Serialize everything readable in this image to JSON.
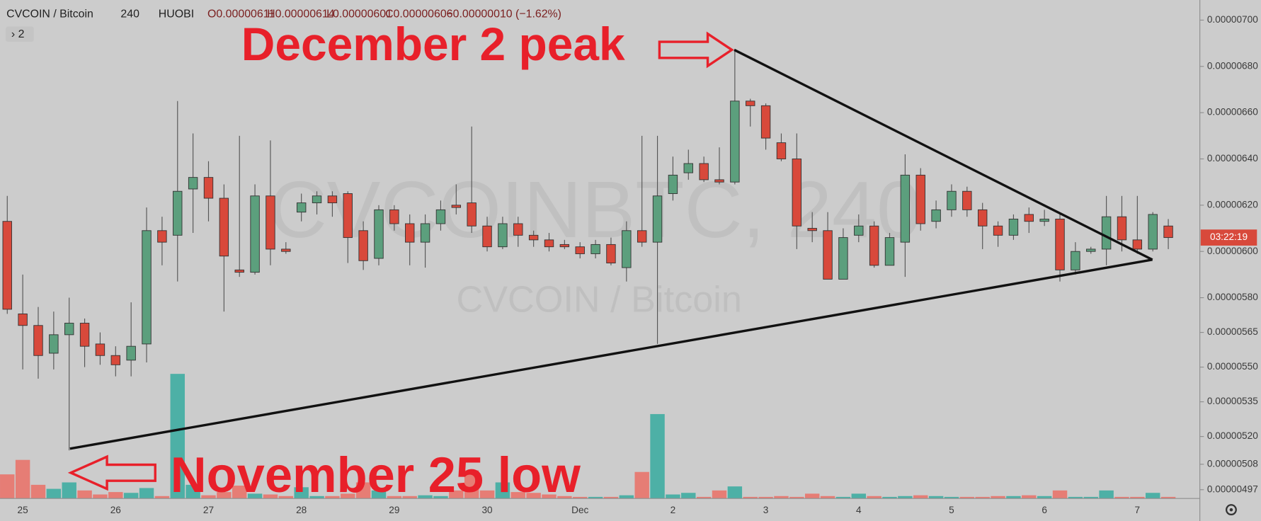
{
  "header": {
    "symbol": "CVCOIN / Bitcoin",
    "interval": "240",
    "exchange": "HUOBI",
    "open": "O0.00000611",
    "high": "H0.00000614",
    "low": "L0.00000601",
    "close": "C0.00000606",
    "change": "−0.00000010 (−1.62%)",
    "indicators": "› 2"
  },
  "watermark": {
    "ticker": "CVCOINBTC, 240",
    "name": "CVCOIN / Bitcoin"
  },
  "chart_data": {
    "type": "candlestick",
    "annotations": [
      "December 2 peak",
      "November 25 low"
    ],
    "countdown": "03:22:19",
    "up_color": "#5c9f7d",
    "down_color": "#d8493b",
    "volume_up_color": "#4db0a6",
    "volume_down_color": "#e67d75",
    "categories": [
      null,
      "25",
      null,
      null,
      null,
      null,
      null,
      "26",
      null,
      null,
      null,
      null,
      null,
      "27",
      null,
      null,
      null,
      null,
      null,
      "28",
      null,
      null,
      null,
      null,
      null,
      "29",
      null,
      null,
      null,
      null,
      null,
      "30",
      null,
      null,
      null,
      null,
      null,
      "Dec",
      null,
      null,
      null,
      null,
      null,
      "2",
      null,
      null,
      null,
      null,
      null,
      "3",
      null,
      null,
      null,
      null,
      null,
      "4",
      null,
      null,
      null,
      null,
      null,
      "5",
      null,
      null,
      null,
      null,
      null,
      "6",
      null,
      null,
      null,
      null,
      null,
      "7",
      null,
      null
    ],
    "open": [
      6.13e-06,
      5.73e-06,
      5.68e-06,
      5.56e-06,
      5.64e-06,
      5.69e-06,
      5.6e-06,
      5.55e-06,
      5.53e-06,
      5.6e-06,
      6.09e-06,
      6.07e-06,
      6.27e-06,
      6.32e-06,
      6.23e-06,
      5.92e-06,
      5.91e-06,
      6.24e-06,
      6.01e-06,
      6.17e-06,
      6.21e-06,
      6.24e-06,
      6.25e-06,
      6.09e-06,
      5.97e-06,
      6.18e-06,
      6.12e-06,
      6.04e-06,
      6.12e-06,
      6.2e-06,
      6.21e-06,
      6.11e-06,
      6.02e-06,
      6.12e-06,
      6.07e-06,
      6.05e-06,
      6.03e-06,
      6.02e-06,
      5.99e-06,
      6.03e-06,
      5.93e-06,
      6.09e-06,
      6.04e-06,
      6.25e-06,
      6.34e-06,
      6.38e-06,
      6.31e-06,
      6.3e-06,
      6.65e-06,
      6.63e-06,
      6.47e-06,
      6.4e-06,
      6.1e-06,
      6.09e-06,
      5.88e-06,
      6.07e-06,
      6.11e-06,
      5.94e-06,
      6.04e-06,
      6.33e-06,
      6.13e-06,
      6.18e-06,
      6.26e-06,
      6.18e-06,
      6.11e-06,
      6.07e-06,
      6.16e-06,
      6.13e-06,
      6.14e-06,
      5.92e-06,
      6e-06,
      6.01e-06,
      6.15e-06,
      6.05e-06,
      6.01e-06,
      6.11e-06
    ],
    "high": [
      6.24e-06,
      5.9e-06,
      5.76e-06,
      5.74e-06,
      5.8e-06,
      5.71e-06,
      5.65e-06,
      5.59e-06,
      5.78e-06,
      6.19e-06,
      6.15e-06,
      6.65e-06,
      6.51e-06,
      6.39e-06,
      6.29e-06,
      6.5e-06,
      6.29e-06,
      6.48e-06,
      6.04e-06,
      6.25e-06,
      6.26e-06,
      6.26e-06,
      6.26e-06,
      6.13e-06,
      6.2e-06,
      6.2e-06,
      6.16e-06,
      6.16e-06,
      6.22e-06,
      6.29e-06,
      6.54e-06,
      6.15e-06,
      6.15e-06,
      6.15e-06,
      6.09e-06,
      6.08e-06,
      6.05e-06,
      6.04e-06,
      6.05e-06,
      6.06e-06,
      6.13e-06,
      6.5e-06,
      6.5e-06,
      6.41e-06,
      6.44e-06,
      6.41e-06,
      6.45e-06,
      6.87e-06,
      6.66e-06,
      6.64e-06,
      6.51e-06,
      6.51e-06,
      6.17e-06,
      6.17e-06,
      6.1e-06,
      6.16e-06,
      6.13e-06,
      6.08e-06,
      6.42e-06,
      6.36e-06,
      6.22e-06,
      6.29e-06,
      6.28e-06,
      6.21e-06,
      6.13e-06,
      6.16e-06,
      6.19e-06,
      6.18e-06,
      6.16e-06,
      6.04e-06,
      6.02e-06,
      6.24e-06,
      6.24e-06,
      6.24e-06,
      6.17e-06,
      6.14e-06
    ],
    "low": [
      5.73e-06,
      5.49e-06,
      5.45e-06,
      5.49e-06,
      5.14e-06,
      5.5e-06,
      5.51e-06,
      5.46e-06,
      5.46e-06,
      5.52e-06,
      5.94e-06,
      5.87e-06,
      6.08e-06,
      6.13e-06,
      5.74e-06,
      5.89e-06,
      5.9e-06,
      5.94e-06,
      5.99e-06,
      6.13e-06,
      6.16e-06,
      6.15e-06,
      5.95e-06,
      5.92e-06,
      5.94e-06,
      6.09e-06,
      5.94e-06,
      5.93e-06,
      6.09e-06,
      6.16e-06,
      6.08e-06,
      6e-06,
      6.01e-06,
      6.02e-06,
      6.02e-06,
      6e-06,
      6.01e-06,
      5.97e-06,
      5.97e-06,
      5.94e-06,
      5.87e-06,
      6.02e-06,
      5.6e-06,
      6.22e-06,
      6.31e-06,
      6.3e-06,
      6.29e-06,
      6.29e-06,
      6.54e-06,
      6.44e-06,
      6.39e-06,
      6.01e-06,
      6.04e-06,
      5.88e-06,
      5.88e-06,
      6.04e-06,
      5.93e-06,
      5.94e-06,
      5.89e-06,
      6.09e-06,
      6.1e-06,
      6.15e-06,
      6.15e-06,
      6.01e-06,
      6.02e-06,
      6.05e-06,
      6.08e-06,
      6.11e-06,
      5.87e-06,
      5.9e-06,
      5.99e-06,
      5.94e-06,
      6e-06,
      5.99e-06,
      6e-06,
      6.01e-06
    ],
    "close": [
      5.75e-06,
      5.68e-06,
      5.55e-06,
      5.64e-06,
      5.69e-06,
      5.59e-06,
      5.55e-06,
      5.51e-06,
      5.59e-06,
      6.09e-06,
      6.04e-06,
      6.26e-06,
      6.32e-06,
      6.23e-06,
      5.98e-06,
      5.91e-06,
      6.24e-06,
      6.01e-06,
      6e-06,
      6.21e-06,
      6.24e-06,
      6.21e-06,
      6.06e-06,
      5.96e-06,
      6.18e-06,
      6.12e-06,
      6.04e-06,
      6.12e-06,
      6.18e-06,
      6.19e-06,
      6.11e-06,
      6.02e-06,
      6.12e-06,
      6.07e-06,
      6.05e-06,
      6.02e-06,
      6.02e-06,
      5.99e-06,
      6.03e-06,
      5.95e-06,
      6.09e-06,
      6.04e-06,
      6.24e-06,
      6.33e-06,
      6.38e-06,
      6.31e-06,
      6.3e-06,
      6.65e-06,
      6.63e-06,
      6.49e-06,
      6.4e-06,
      6.11e-06,
      6.09e-06,
      5.88e-06,
      6.06e-06,
      6.11e-06,
      5.94e-06,
      6.06e-06,
      6.33e-06,
      6.12e-06,
      6.18e-06,
      6.26e-06,
      6.18e-06,
      6.11e-06,
      6.07e-06,
      6.14e-06,
      6.13e-06,
      6.14e-06,
      5.92e-06,
      6e-06,
      6.01e-06,
      6.15e-06,
      6.05e-06,
      6.01e-06,
      6.16e-06,
      6.06e-06
    ],
    "volume": [
      30,
      48,
      17,
      12,
      20,
      10,
      5,
      8,
      7,
      13,
      3,
      155,
      17,
      4,
      8,
      16,
      6,
      5,
      3,
      14,
      3,
      3,
      6,
      20,
      10,
      3,
      3,
      4,
      3,
      10,
      35,
      10,
      20,
      8,
      7,
      5,
      3,
      2,
      2,
      2,
      4,
      33,
      105,
      5,
      7,
      2,
      10,
      15,
      2,
      2,
      3,
      2,
      6,
      3,
      2,
      6,
      3,
      2,
      3,
      4,
      3,
      2,
      2,
      2,
      3,
      3,
      4,
      3,
      10,
      2,
      2,
      10,
      2,
      2,
      7,
      2
    ],
    "volume_ylim": [
      0,
      160
    ],
    "ylim": [
      4.932e-06,
      7.087e-06
    ],
    "yticks": [
      {
        "value": 7e-06,
        "label": "0.00000700"
      },
      {
        "value": 6.8e-06,
        "label": "0.00000680"
      },
      {
        "value": 6.6e-06,
        "label": "0.00000660"
      },
      {
        "value": 6.4e-06,
        "label": "0.00000640"
      },
      {
        "value": 6.2e-06,
        "label": "0.00000620"
      },
      {
        "value": 6e-06,
        "label": "0.00000600"
      },
      {
        "value": 5.8e-06,
        "label": "0.00000580"
      },
      {
        "value": 5.65e-06,
        "label": "0.00000565"
      },
      {
        "value": 5.5e-06,
        "label": "0.00000550"
      },
      {
        "value": 5.35e-06,
        "label": "0.00000535"
      },
      {
        "value": 5.2e-06,
        "label": "0.00000520"
      },
      {
        "value": 5.08e-06,
        "label": "0.00000508"
      },
      {
        "value": 4.97e-06,
        "label": "0.00000497"
      }
    ]
  }
}
